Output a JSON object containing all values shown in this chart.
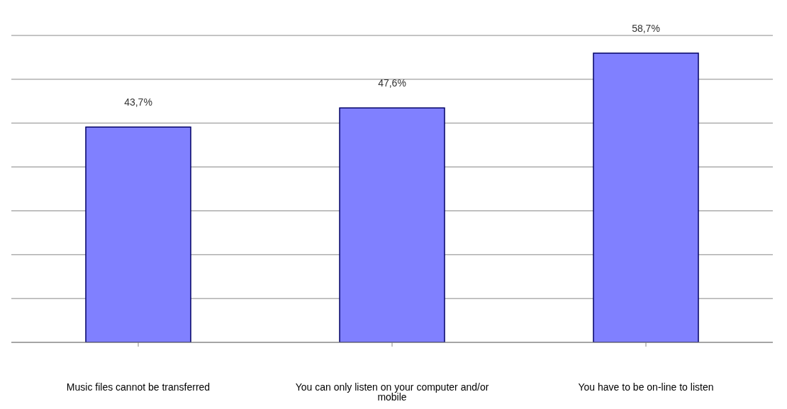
{
  "chart_data": {
    "type": "bar",
    "categories": [
      "Music files cannot be transferred",
      "You can only listen on your computer and/or mobile",
      "You have to be on-line to listen"
    ],
    "values": [
      43.7,
      47.6,
      58.7
    ],
    "value_labels": [
      "43,7%",
      "47,6%",
      "58,7%"
    ],
    "color": "#8080ff",
    "ylim": [
      0,
      62.3
    ],
    "yticks": [
      {
        "value": 0,
        "label": null
      },
      {
        "value": 8.9,
        "label": null
      },
      {
        "value": 17.8,
        "label": null
      },
      {
        "value": 26.7,
        "label": null
      },
      {
        "value": 35.6,
        "label": null
      },
      {
        "value": 44.5,
        "label": null
      },
      {
        "value": 53.4,
        "label": null
      },
      {
        "value": 62.3,
        "label": null
      }
    ],
    "grid": "y",
    "tick_labels": "x",
    "legend": false
  }
}
